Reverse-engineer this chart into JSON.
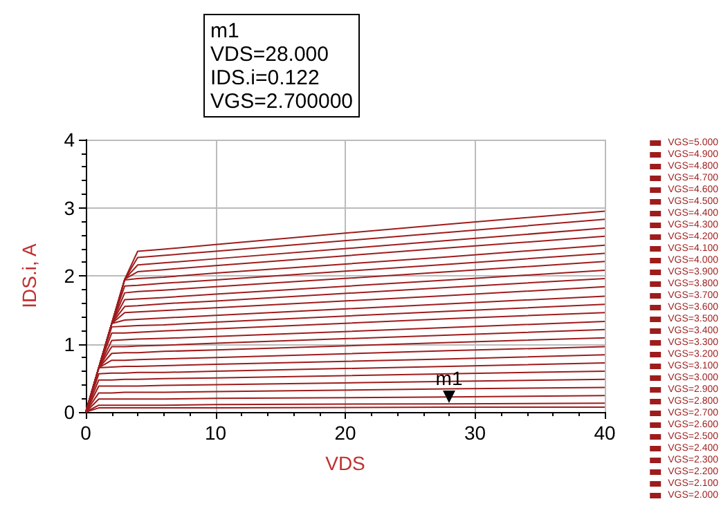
{
  "chart_data": {
    "type": "line",
    "xlabel": "VDS",
    "ylabel": "IDS.i, A",
    "x": [
      0,
      1,
      2,
      3,
      4,
      6,
      10,
      28,
      40
    ],
    "xlim": [
      0,
      40
    ],
    "xticks": [
      0,
      10,
      20,
      30,
      40
    ],
    "ylim": [
      0,
      4
    ],
    "yticks": [
      0,
      1,
      2,
      3,
      4
    ],
    "grid": true,
    "legend": "right",
    "marker": "none",
    "line_style": "solid",
    "annotations": [
      {
        "text": "m1",
        "x": 28,
        "y": 0.122
      },
      "m1\nVDS=28.000\nIDS.i=0.122\nVGS=2.700000"
    ],
    "series": [
      {
        "name": "VGS=5.000",
        "color": "#9e1c1c",
        "values": [
          0,
          0.65,
          1.3,
          1.95,
          2.36,
          2.39,
          2.46,
          2.76,
          2.95
        ]
      },
      {
        "name": "VGS=4.900",
        "color": "#9e1c1c",
        "values": [
          0,
          0.65,
          1.3,
          1.95,
          2.27,
          2.3,
          2.36,
          2.64,
          2.83
        ]
      },
      {
        "name": "VGS=4.800",
        "color": "#9e1c1c",
        "values": [
          0,
          0.65,
          1.3,
          1.95,
          2.16,
          2.19,
          2.25,
          2.52,
          2.7
        ]
      },
      {
        "name": "VGS=4.700",
        "color": "#9e1c1c",
        "values": [
          0,
          0.65,
          1.3,
          1.95,
          2.06,
          2.09,
          2.15,
          2.41,
          2.58
        ]
      },
      {
        "name": "VGS=4.600",
        "color": "#9e1c1c",
        "values": [
          0,
          0.65,
          1.3,
          1.94,
          1.96,
          1.98,
          2.04,
          2.28,
          2.45
        ]
      },
      {
        "name": "VGS=4.500",
        "color": "#9e1c1c",
        "values": [
          0,
          0.65,
          1.3,
          1.85,
          1.86,
          1.89,
          1.94,
          2.17,
          2.33
        ]
      },
      {
        "name": "VGS=4.400",
        "color": "#9e1c1c",
        "values": [
          0,
          0.65,
          1.3,
          1.75,
          1.77,
          1.79,
          1.84,
          2.06,
          2.21
        ]
      },
      {
        "name": "VGS=4.300",
        "color": "#9e1c1c",
        "values": [
          0,
          0.65,
          1.3,
          1.65,
          1.66,
          1.68,
          1.73,
          1.94,
          2.08
        ]
      },
      {
        "name": "VGS=4.200",
        "color": "#9e1c1c",
        "values": [
          0,
          0.65,
          1.3,
          1.55,
          1.56,
          1.59,
          1.63,
          1.83,
          1.96
        ]
      },
      {
        "name": "VGS=4.100",
        "color": "#9e1c1c",
        "values": [
          0,
          0.65,
          1.3,
          1.46,
          1.47,
          1.49,
          1.53,
          1.71,
          1.84
        ]
      },
      {
        "name": "VGS=4.000",
        "color": "#9e1c1c",
        "values": [
          0,
          0.65,
          1.3,
          1.35,
          1.36,
          1.38,
          1.42,
          1.59,
          1.7
        ]
      },
      {
        "name": "VGS=3.900",
        "color": "#9e1c1c",
        "values": [
          0,
          0.65,
          1.25,
          1.26,
          1.27,
          1.28,
          1.32,
          1.48,
          1.58
        ]
      },
      {
        "name": "VGS=3.800",
        "color": "#9e1c1c",
        "values": [
          0,
          0.65,
          1.16,
          1.16,
          1.17,
          1.19,
          1.22,
          1.37,
          1.46
        ]
      },
      {
        "name": "VGS=3.700",
        "color": "#9e1c1c",
        "values": [
          0,
          0.65,
          1.05,
          1.06,
          1.07,
          1.08,
          1.11,
          1.24,
          1.33
        ]
      },
      {
        "name": "VGS=3.600",
        "color": "#9e1c1c",
        "values": [
          0,
          0.65,
          0.96,
          0.96,
          0.97,
          0.98,
          1.01,
          1.13,
          1.21
        ]
      },
      {
        "name": "VGS=3.500",
        "color": "#9e1c1c",
        "values": [
          0,
          0.65,
          0.86,
          0.87,
          0.87,
          0.89,
          0.91,
          1.02,
          1.09
        ]
      },
      {
        "name": "VGS=3.400",
        "color": "#9e1c1c",
        "values": [
          0,
          0.65,
          0.76,
          0.76,
          0.77,
          0.78,
          0.8,
          0.9,
          0.96
        ]
      },
      {
        "name": "VGS=3.300",
        "color": "#9e1c1c",
        "values": [
          0,
          0.65,
          0.66,
          0.67,
          0.67,
          0.68,
          0.7,
          0.78,
          0.84
        ]
      },
      {
        "name": "VGS=3.200",
        "color": "#9e1c1c",
        "values": [
          0,
          0.56,
          0.57,
          0.57,
          0.58,
          0.58,
          0.6,
          0.67,
          0.72
        ]
      },
      {
        "name": "VGS=3.100",
        "color": "#9e1c1c",
        "values": [
          0,
          0.47,
          0.47,
          0.48,
          0.48,
          0.49,
          0.5,
          0.56,
          0.6
        ]
      },
      {
        "name": "VGS=3.000",
        "color": "#9e1c1c",
        "values": [
          0,
          0.38,
          0.38,
          0.38,
          0.38,
          0.39,
          0.4,
          0.45,
          0.48
        ]
      },
      {
        "name": "VGS=2.900",
        "color": "#9e1c1c",
        "values": [
          0,
          0.28,
          0.28,
          0.29,
          0.29,
          0.29,
          0.3,
          0.34,
          0.36
        ]
      },
      {
        "name": "VGS=2.800",
        "color": "#9e1c1c",
        "values": [
          0,
          0.19,
          0.19,
          0.19,
          0.19,
          0.19,
          0.2,
          0.22,
          0.24
        ]
      },
      {
        "name": "VGS=2.700",
        "color": "#9e1c1c",
        "values": [
          0,
          0.1,
          0.1,
          0.1,
          0.1,
          0.1,
          0.11,
          0.12,
          0.13
        ]
      },
      {
        "name": "VGS=2.600",
        "color": "#9e1c1c",
        "values": [
          0,
          0.06,
          0.06,
          0.06,
          0.06,
          0.06,
          0.06,
          0.07,
          0.07
        ]
      },
      {
        "name": "VGS=2.500",
        "color": "#9e1c1c",
        "values": [
          null,
          null,
          null,
          null,
          null,
          null,
          null,
          null,
          null
        ]
      },
      {
        "name": "VGS=2.400",
        "color": "#9e1c1c",
        "values": [
          null,
          null,
          null,
          null,
          null,
          null,
          null,
          null,
          null
        ]
      },
      {
        "name": "VGS=2.300",
        "color": "#9e1c1c",
        "values": [
          null,
          null,
          null,
          null,
          null,
          null,
          null,
          null,
          null
        ]
      },
      {
        "name": "VGS=2.200",
        "color": "#9e1c1c",
        "values": [
          null,
          null,
          null,
          null,
          null,
          null,
          null,
          null,
          null
        ]
      },
      {
        "name": "VGS=2.100",
        "color": "#9e1c1c",
        "values": [
          null,
          null,
          null,
          null,
          null,
          null,
          null,
          null,
          null
        ]
      },
      {
        "name": "VGS=2.000",
        "color": "#9e1c1c",
        "values": [
          null,
          null,
          null,
          null,
          null,
          null,
          null,
          null,
          null
        ]
      }
    ]
  }
}
